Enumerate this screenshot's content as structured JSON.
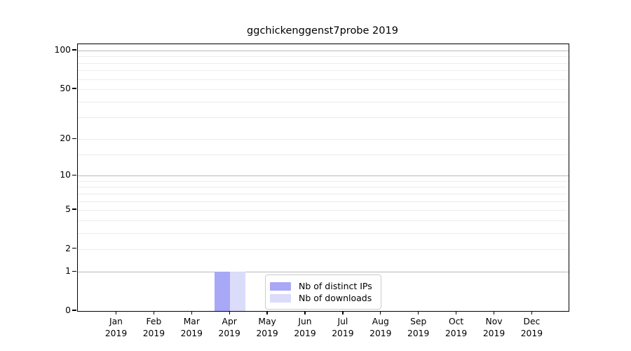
{
  "title": "ggchickenggenst7probe 2019",
  "colors": {
    "background": "#ffffff",
    "axis": "#000000",
    "grid_major": "#b9b9b9",
    "grid_minor": "#ececec",
    "bar_distinct_ips": "#a8a8f6",
    "bar_downloads": "#dbdbfa",
    "legend_border": "#cccccc",
    "text": "#000000"
  },
  "chart_data": {
    "type": "bar",
    "title": "ggchickenggenst7probe 2019",
    "xlabel": "",
    "ylabel": "",
    "yscale": "log1p",
    "ylim": [
      0,
      112
    ],
    "grid": "on",
    "legend_position": "lower center inside",
    "months": [
      "Jan",
      "Feb",
      "Mar",
      "Apr",
      "May",
      "Jun",
      "Jul",
      "Aug",
      "Sep",
      "Oct",
      "Nov",
      "Dec"
    ],
    "year_label": "2019",
    "ytick_labeled_values": [
      0,
      1,
      2,
      5,
      10,
      20,
      50,
      100
    ],
    "grid_major_values": [
      1,
      10,
      100
    ],
    "grid_minor_values": [
      2,
      3,
      4,
      5,
      6,
      7,
      8,
      9,
      15,
      20,
      30,
      40,
      50,
      60,
      70,
      80,
      90
    ],
    "series": [
      {
        "name": "Nb of distinct IPs",
        "color": "#a8a8f6",
        "values": [
          0,
          0,
          0,
          1,
          0,
          0,
          0,
          0,
          0,
          0,
          0,
          0
        ]
      },
      {
        "name": "Nb of downloads",
        "color": "#dbdbfa",
        "values": [
          0,
          0,
          0,
          1,
          0,
          0,
          0,
          0,
          0,
          0,
          0,
          0
        ]
      }
    ]
  }
}
